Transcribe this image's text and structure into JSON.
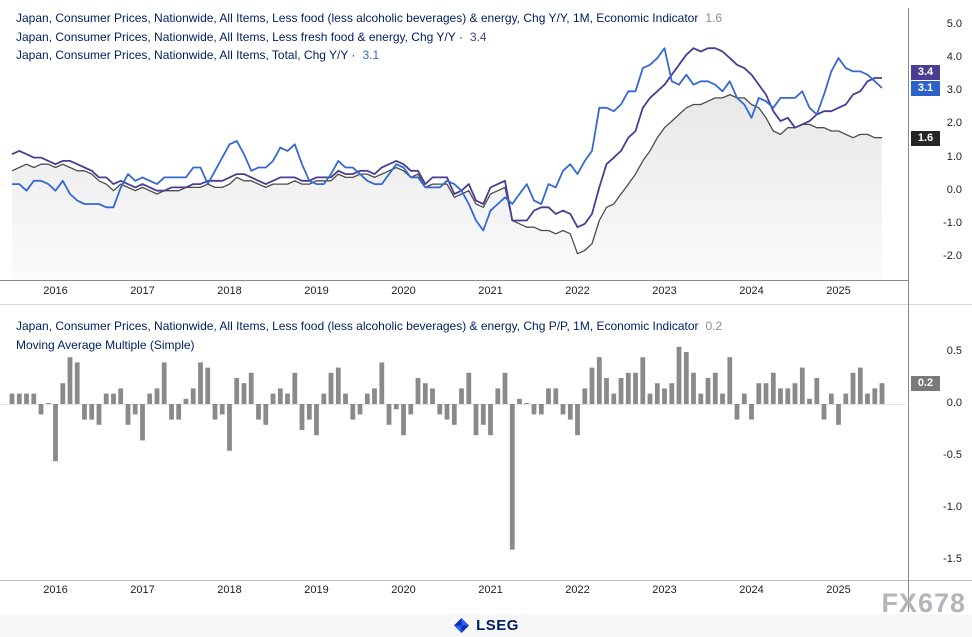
{
  "watermark": {
    "text": "FX678"
  },
  "footer": {
    "brand": "LSEG"
  },
  "chart_data": [
    {
      "type": "line",
      "title": "Japan Consumer Prices, Chg Y/Y (top panel)",
      "x_start": "2015-07",
      "x_freq_months": 1,
      "x_tick_labels": [
        "2016",
        "2017",
        "2018",
        "2019",
        "2020",
        "2021",
        "2022",
        "2023",
        "2024",
        "2025"
      ],
      "y_ticks": [
        5.0,
        4.0,
        3.0,
        2.0,
        1.0,
        0.0,
        -1.0,
        -2.0
      ],
      "ylim": [
        -2.5,
        5.4
      ],
      "grid": "off",
      "legend_position": "top-left",
      "legend": [
        {
          "text": "Japan, Consumer Prices, Nationwide, All Items, Less food (less alcoholic beverages) & energy, Chg Y/Y, 1M, Economic Indicator",
          "value": "1.6",
          "value_color": "#8c8c8c"
        },
        {
          "text": "Japan, Consumer Prices, Nationwide, All Items, Less fresh food & energy, Chg Y/Y ·",
          "value": "3.4",
          "value_color": "#4b3e92"
        },
        {
          "text": "Japan, Consumer Prices, Nationwide, All Items, Total, Chg Y/Y ·",
          "value": "3.1",
          "value_color": "#3569d0"
        }
      ],
      "badges": [
        {
          "text": "3.4",
          "color": "#4b3e92"
        },
        {
          "text": "3.1",
          "color": "#2f62c9"
        },
        {
          "text": "1.6",
          "color": "#262626"
        }
      ],
      "series": [
        {
          "name": "Japan, Consumer Prices, Nationwide, All Items, Less food (less alcoholic beverages) & energy, Chg Y/Y, 1M, Economic Indicator",
          "color": "#4d4d4d",
          "style": "line-with-area",
          "last_value": 1.6,
          "values": [
            0.6,
            0.7,
            0.8,
            0.7,
            0.8,
            0.8,
            0.7,
            0.8,
            0.7,
            0.6,
            0.6,
            0.5,
            0.3,
            0.2,
            0.0,
            0.2,
            0.1,
            0.0,
            0.1,
            0.0,
            -0.1,
            0.0,
            0.0,
            0.0,
            0.1,
            0.1,
            0.1,
            0.2,
            0.1,
            0.1,
            0.2,
            0.4,
            0.3,
            0.3,
            0.2,
            0.1,
            0.2,
            0.2,
            0.2,
            0.3,
            0.2,
            0.2,
            0.3,
            0.3,
            0.3,
            0.5,
            0.4,
            0.4,
            0.5,
            0.5,
            0.4,
            0.5,
            0.6,
            0.7,
            0.6,
            0.4,
            0.5,
            0.1,
            0.2,
            0.2,
            0.2,
            -0.2,
            -0.1,
            0.0,
            -0.4,
            -0.5,
            -0.1,
            0.0,
            0.1,
            -0.9,
            -1.0,
            -1.1,
            -1.1,
            -1.2,
            -1.2,
            -1.3,
            -1.2,
            -1.3,
            -1.9,
            -1.8,
            -1.6,
            -0.9,
            -0.5,
            -0.4,
            -0.1,
            0.2,
            0.5,
            0.9,
            1.2,
            1.6,
            1.9,
            2.1,
            2.3,
            2.5,
            2.6,
            2.6,
            2.7,
            2.8,
            2.8,
            2.9,
            2.8,
            2.8,
            2.6,
            2.5,
            2.2,
            1.8,
            1.7,
            1.9,
            1.9,
            2.0,
            2.0,
            1.9,
            1.9,
            1.8,
            1.8,
            1.7,
            1.6,
            1.7,
            1.7,
            1.6,
            1.6
          ]
        },
        {
          "name": "Japan, Consumer Prices, Nationwide, All Items, Less fresh food & energy, Chg Y/Y",
          "color": "#4b3e92",
          "style": "line",
          "last_value": 3.4,
          "values": [
            1.1,
            1.2,
            1.1,
            1.0,
            1.0,
            0.9,
            0.8,
            0.9,
            0.9,
            0.8,
            0.7,
            0.6,
            0.4,
            0.4,
            0.2,
            0.3,
            0.2,
            0.1,
            0.2,
            0.1,
            0.0,
            0.0,
            0.1,
            0.1,
            0.1,
            0.2,
            0.2,
            0.3,
            0.3,
            0.3,
            0.4,
            0.5,
            0.5,
            0.4,
            0.3,
            0.2,
            0.3,
            0.4,
            0.4,
            0.4,
            0.3,
            0.3,
            0.4,
            0.4,
            0.4,
            0.6,
            0.5,
            0.5,
            0.6,
            0.6,
            0.5,
            0.7,
            0.8,
            0.9,
            0.8,
            0.6,
            0.6,
            0.2,
            0.4,
            0.4,
            0.4,
            -0.1,
            0.0,
            0.2,
            -0.3,
            -0.4,
            0.1,
            0.2,
            0.3,
            -0.9,
            -0.9,
            -0.9,
            -0.6,
            -0.5,
            -0.5,
            -0.7,
            -0.6,
            -0.7,
            -1.1,
            -1.0,
            -0.7,
            0.1,
            0.8,
            1.0,
            1.2,
            1.6,
            1.8,
            2.5,
            2.8,
            3.0,
            3.2,
            3.5,
            3.8,
            4.1,
            4.3,
            4.2,
            4.3,
            4.3,
            4.2,
            4.0,
            3.8,
            3.7,
            3.5,
            3.2,
            2.9,
            2.4,
            2.1,
            2.2,
            1.9,
            2.0,
            2.1,
            2.3,
            2.4,
            2.4,
            2.5,
            2.6,
            2.9,
            3.0,
            3.3,
            3.4,
            3.4
          ]
        },
        {
          "name": "Japan, Consumer Prices, Nationwide, All Items, Total, Chg Y/Y",
          "color": "#3569d0",
          "style": "line",
          "last_value": 3.1,
          "values": [
            0.2,
            0.2,
            0.0,
            0.3,
            0.3,
            0.2,
            0.0,
            0.3,
            -0.1,
            -0.3,
            -0.4,
            -0.4,
            -0.4,
            -0.5,
            -0.5,
            0.1,
            0.5,
            0.3,
            0.4,
            0.3,
            0.2,
            0.4,
            0.4,
            0.4,
            0.4,
            0.7,
            0.7,
            0.2,
            0.6,
            1.0,
            1.4,
            1.5,
            1.1,
            0.6,
            0.7,
            0.7,
            0.9,
            1.3,
            1.2,
            1.4,
            0.8,
            0.3,
            0.2,
            0.2,
            0.5,
            0.9,
            0.7,
            0.7,
            0.5,
            0.3,
            0.2,
            0.2,
            0.5,
            0.8,
            0.7,
            0.4,
            0.4,
            0.1,
            0.1,
            0.1,
            0.3,
            0.2,
            0.0,
            -0.4,
            -0.9,
            -1.2,
            -0.6,
            -0.4,
            -0.2,
            -0.4,
            -0.1,
            0.2,
            -0.3,
            -0.4,
            0.2,
            0.1,
            0.6,
            0.8,
            0.5,
            0.9,
            1.2,
            2.5,
            2.5,
            2.4,
            2.6,
            3.0,
            3.0,
            3.7,
            3.8,
            4.0,
            4.3,
            3.3,
            3.2,
            3.5,
            3.2,
            3.3,
            3.3,
            3.2,
            3.0,
            3.3,
            2.8,
            2.6,
            2.2,
            2.8,
            2.7,
            2.5,
            2.8,
            2.8,
            2.8,
            3.0,
            2.5,
            2.3,
            2.9,
            3.6,
            4.0,
            3.7,
            3.6,
            3.6,
            3.5,
            3.3,
            3.1
          ]
        }
      ]
    },
    {
      "type": "bar",
      "title": "Japan Consumer Prices, Chg P/P (bottom panel)",
      "x_start": "2015-07",
      "x_freq_months": 1,
      "x_tick_labels": [
        "2016",
        "2017",
        "2018",
        "2019",
        "2020",
        "2021",
        "2022",
        "2023",
        "2024",
        "2025"
      ],
      "y_ticks": [
        0.5,
        0.0,
        -0.5,
        -1.0,
        -1.5
      ],
      "ylim": [
        -1.6,
        0.7
      ],
      "grid": "off",
      "legend_position": "top-left",
      "legend": [
        {
          "text": "Japan, Consumer Prices, Nationwide, All Items, Less food (less alcoholic beverages) & energy, Chg P/P, 1M, Economic Indicator",
          "value": "0.2",
          "value_color": "#8c8c8c"
        },
        {
          "text": "Moving Average Multiple (Simple)"
        }
      ],
      "badges": [
        {
          "text": "0.2",
          "color": "#7a7a7a"
        }
      ],
      "series": [
        {
          "name": "Japan, Consumer Prices, Nationwide, All Items, Less food (less alcoholic beverages) & energy, Chg P/P, 1M, Economic Indicator",
          "color": "#8a8a8a",
          "style": "bar",
          "last_value": 0.2,
          "values": [
            0.1,
            0.1,
            0.1,
            0.1,
            -0.1,
            0.0,
            -0.55,
            0.2,
            0.45,
            0.4,
            -0.15,
            -0.15,
            -0.2,
            0.1,
            0.1,
            0.15,
            -0.2,
            -0.1,
            -0.35,
            0.1,
            0.15,
            0.4,
            -0.15,
            -0.15,
            0.05,
            0.15,
            0.4,
            0.35,
            -0.15,
            -0.1,
            -0.45,
            0.25,
            0.2,
            0.3,
            -0.15,
            -0.2,
            0.1,
            0.15,
            0.1,
            0.3,
            -0.25,
            -0.15,
            -0.3,
            0.1,
            0.3,
            0.35,
            0.1,
            -0.15,
            -0.1,
            0.1,
            0.15,
            0.4,
            -0.2,
            -0.05,
            -0.3,
            -0.1,
            0.25,
            0.2,
            0.15,
            -0.1,
            -0.15,
            -0.2,
            0.15,
            0.3,
            -0.3,
            -0.2,
            -0.3,
            0.15,
            0.3,
            -1.4,
            0.05,
            0.0,
            -0.1,
            -0.1,
            0.15,
            0.15,
            -0.1,
            -0.15,
            -0.3,
            0.15,
            0.35,
            0.45,
            0.25,
            0.1,
            0.25,
            0.3,
            0.3,
            0.45,
            0.1,
            0.2,
            0.15,
            0.2,
            0.55,
            0.5,
            0.3,
            0.1,
            0.25,
            0.3,
            0.1,
            0.45,
            -0.15,
            0.1,
            -0.15,
            0.2,
            0.2,
            0.3,
            0.15,
            0.15,
            0.2,
            0.35,
            0.05,
            0.25,
            -0.15,
            0.1,
            -0.2,
            0.1,
            0.3,
            0.35,
            0.1,
            0.15,
            0.2
          ]
        }
      ]
    }
  ]
}
